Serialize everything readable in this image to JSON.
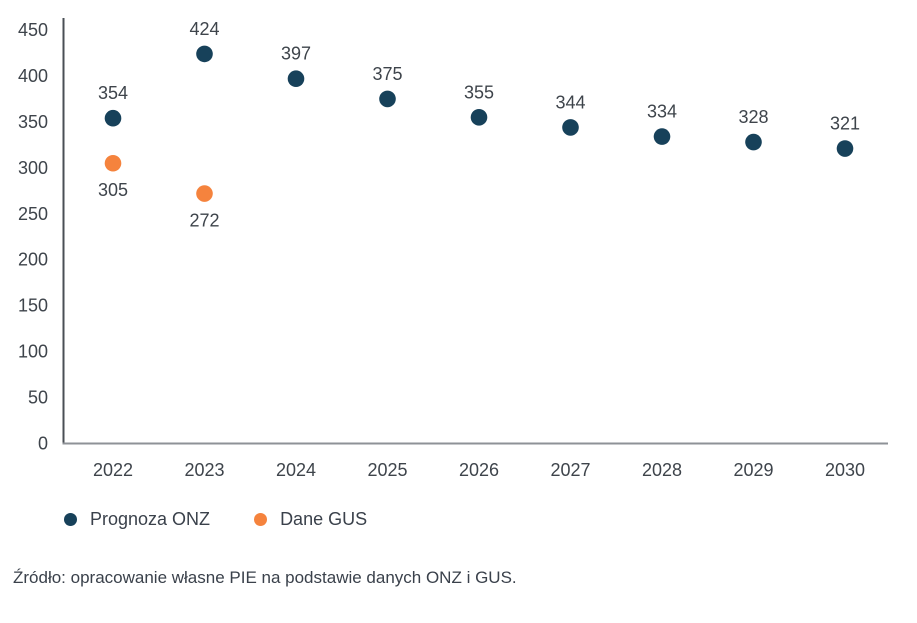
{
  "chart_data": {
    "type": "scatter",
    "title": "",
    "xlabel": "",
    "ylabel": "",
    "categories": [
      "2022",
      "2023",
      "2024",
      "2025",
      "2026",
      "2027",
      "2028",
      "2029",
      "2030"
    ],
    "series": [
      {
        "name": "Prognoza ONZ",
        "color": "#17415A",
        "values": [
          354,
          424,
          397,
          375,
          355,
          344,
          334,
          328,
          321
        ],
        "label_position": "above"
      },
      {
        "name": "Dane GUS",
        "color": "#F5833D",
        "values": [
          305,
          272,
          null,
          null,
          null,
          null,
          null,
          null,
          null
        ],
        "label_position": "below"
      }
    ],
    "ylim": [
      0,
      450
    ],
    "ytick_step": 50,
    "grid": false,
    "legend_position": "bottom-left",
    "axis_color_y": "#4A4F55",
    "axis_color_x": "#8E9297",
    "label_color": "#3E444B"
  },
  "source_note": "Źródło: opracowanie własne PIE na podstawie danych ONZ i GUS."
}
